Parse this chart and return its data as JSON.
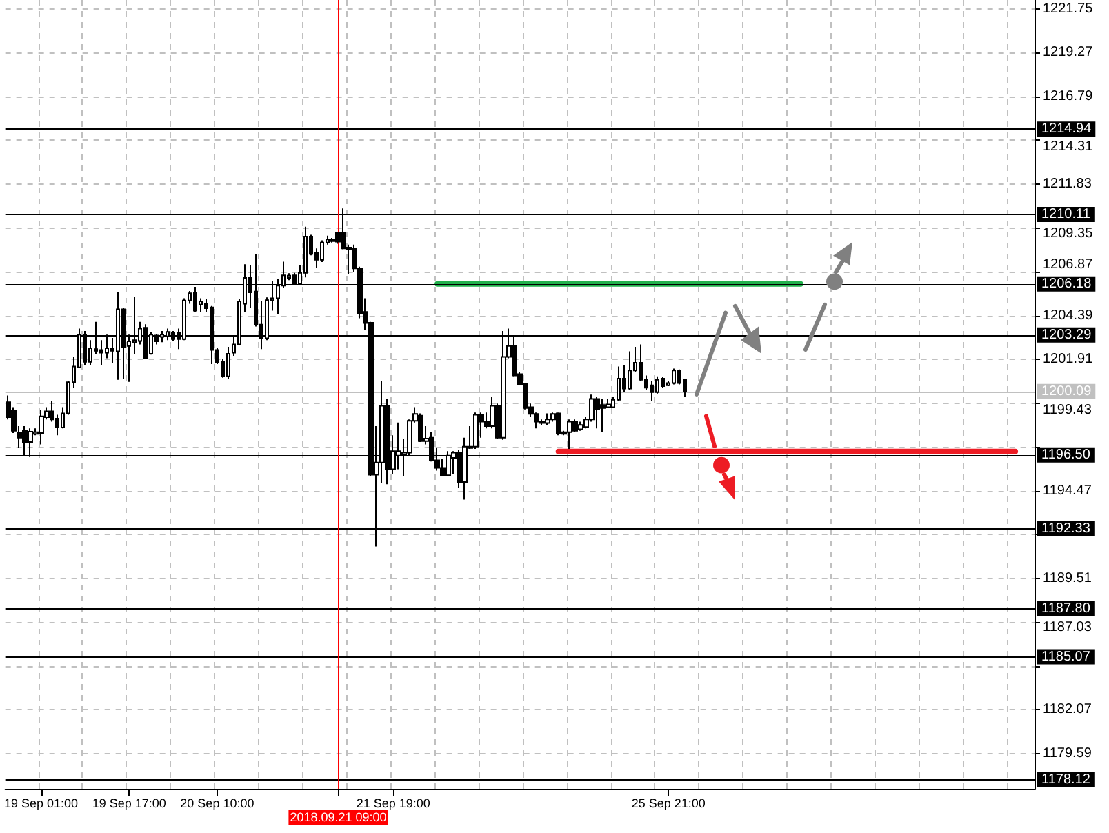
{
  "chart_data": {
    "type": "candlestick",
    "color": "#000000",
    "categories": [
      null,
      null,
      null,
      null,
      null,
      null,
      "19 Sep 01:00",
      null,
      null,
      null,
      null,
      null,
      null,
      null,
      null,
      null,
      null,
      null,
      null,
      null,
      null,
      null,
      "19 Sep 17:00",
      null,
      null,
      null,
      null,
      null,
      null,
      null,
      null,
      null,
      null,
      null,
      null,
      null,
      null,
      null,
      "20 Sep 10:00",
      null,
      null,
      null,
      null,
      null,
      null,
      null,
      null,
      null,
      null,
      null,
      null,
      null,
      null,
      null,
      null,
      null,
      null,
      null,
      null,
      null,
      "2018.09.21 09:00",
      null,
      null,
      null,
      null,
      null,
      null,
      null,
      null,
      null,
      "21 Sep 19:00",
      null,
      null,
      null,
      null,
      null,
      null,
      null,
      null,
      null,
      null,
      null,
      null,
      null,
      null,
      null,
      null,
      null,
      null,
      null,
      null,
      null,
      null,
      null,
      null,
      null,
      null,
      null,
      null,
      null,
      null,
      null,
      null,
      null,
      null,
      null,
      null,
      null,
      null,
      null,
      null,
      null,
      null,
      null,
      null,
      null,
      null,
      null,
      null,
      null,
      "25 Sep 21:00",
      null,
      null,
      null,
      null,
      null,
      null,
      null,
      null,
      null,
      null,
      null,
      null,
      null,
      null,
      null,
      null,
      null,
      null,
      null,
      null,
      null,
      null,
      null,
      null,
      null,
      null,
      null,
      null,
      null,
      null,
      null,
      null,
      null,
      null,
      null,
      null,
      null,
      null,
      null,
      null,
      null,
      null,
      null,
      null,
      null,
      null,
      null,
      null,
      null,
      null,
      null,
      null,
      null,
      null,
      null,
      null,
      null,
      null,
      null,
      null,
      null,
      null,
      null,
      null,
      null,
      null
    ],
    "ohlc": [
      [
        1199.49,
        1199.87,
        1198.51,
        1198.64
      ],
      [
        1199.03,
        1199.2,
        1197.74,
        1197.87
      ],
      [
        1197.74,
        1198.13,
        1196.89,
        1197.48
      ],
      [
        1197.87,
        1198.13,
        1196.46,
        1197.23
      ],
      [
        1197.23,
        1198.0,
        1196.38,
        1197.82
      ],
      [
        1197.69,
        1198.0,
        1197.61,
        1197.79
      ],
      [
        1197.74,
        1199.03,
        1197.1,
        1198.69
      ],
      [
        1198.64,
        1199.2,
        1198.51,
        1198.97
      ],
      [
        1198.97,
        1199.54,
        1198.38,
        1198.51
      ],
      [
        1198.56,
        1198.77,
        1197.61,
        1198.05
      ],
      [
        1198.05,
        1199.2,
        1198.0,
        1198.85
      ],
      [
        1198.85,
        1200.69,
        1198.77,
        1200.62
      ],
      [
        1200.62,
        1202.03,
        1200.31,
        1201.51
      ],
      [
        1201.46,
        1203.65,
        1201.41,
        1203.31
      ],
      [
        1203.31,
        1203.52,
        1201.59,
        1201.77
      ],
      [
        1201.77,
        1203.0,
        1201.59,
        1202.54
      ],
      [
        1202.39,
        1204.03,
        1202.23,
        1202.49
      ],
      [
        1202.44,
        1203.0,
        1201.59,
        1202.29
      ],
      [
        1202.29,
        1203.31,
        1201.97,
        1202.54
      ],
      [
        1202.54,
        1203.13,
        1201.72,
        1202.39
      ],
      [
        1202.36,
        1205.7,
        1200.75,
        1204.75
      ],
      [
        1204.75,
        1204.8,
        1200.82,
        1202.62
      ],
      [
        1202.67,
        1203.31,
        1200.64,
        1202.93
      ],
      [
        1202.88,
        1205.44,
        1202.23,
        1203.0
      ],
      [
        1202.95,
        1204.03,
        1202.75,
        1203.65
      ],
      [
        1203.7,
        1203.9,
        1201.93,
        1201.97
      ],
      [
        1202.23,
        1203.47,
        1202.18,
        1203.31
      ],
      [
        1203.26,
        1203.34,
        1202.75,
        1202.93
      ],
      [
        1203.18,
        1203.52,
        1202.88,
        1203.31
      ],
      [
        1203.21,
        1203.65,
        1203.0,
        1203.47
      ],
      [
        1203.44,
        1203.52,
        1202.95,
        1203.06
      ],
      [
        1203.44,
        1203.65,
        1202.49,
        1203.06
      ],
      [
        1203.06,
        1205.37,
        1203.0,
        1205.24
      ],
      [
        1205.24,
        1205.78,
        1205.06,
        1205.65
      ],
      [
        1205.7,
        1206.01,
        1204.6,
        1204.67
      ],
      [
        1205.01,
        1205.37,
        1204.6,
        1205.19
      ],
      [
        1205.06,
        1205.31,
        1204.6,
        1204.8
      ],
      [
        1204.85,
        1204.93,
        1201.64,
        1202.44
      ],
      [
        1202.44,
        1202.54,
        1201.64,
        1201.72
      ],
      [
        1201.77,
        1201.93,
        1200.87,
        1200.95
      ],
      [
        1200.95,
        1202.62,
        1200.82,
        1202.23
      ],
      [
        1202.29,
        1203.21,
        1202.11,
        1202.75
      ],
      [
        1202.75,
        1205.31,
        1202.7,
        1205.19
      ],
      [
        1205.06,
        1207.29,
        1204.6,
        1206.52
      ],
      [
        1206.52,
        1207.24,
        1204.8,
        1205.7
      ],
      [
        1205.75,
        1207.88,
        1203.77,
        1203.88
      ],
      [
        1203.88,
        1205.19,
        1202.49,
        1203.11
      ],
      [
        1203.11,
        1205.42,
        1203.0,
        1205.26
      ],
      [
        1205.26,
        1206.34,
        1204.67,
        1205.37
      ],
      [
        1205.37,
        1206.47,
        1204.49,
        1206.08
      ],
      [
        1206.08,
        1207.44,
        1205.96,
        1206.67
      ],
      [
        1206.52,
        1206.78,
        1206.39,
        1206.65
      ],
      [
        1206.67,
        1206.8,
        1206.14,
        1206.21
      ],
      [
        1206.21,
        1207.24,
        1206.16,
        1206.8
      ],
      [
        1206.8,
        1209.42,
        1206.55,
        1208.86
      ],
      [
        1208.86,
        1208.96,
        1207.8,
        1207.88
      ],
      [
        1207.93,
        1208.19,
        1207.11,
        1207.55
      ],
      [
        1207.55,
        1208.65,
        1207.42,
        1208.52
      ],
      [
        1208.52,
        1208.91,
        1208.4,
        1208.7
      ],
      [
        1208.7,
        1208.78,
        1208.52,
        1208.6
      ],
      [
        1209.09,
        1209.09,
        1208.45,
        1208.57
      ],
      [
        1209.09,
        1210.45,
        1208.14,
        1208.19
      ],
      [
        1208.24,
        1208.4,
        1206.73,
        1208.14
      ],
      [
        1208.19,
        1208.4,
        1206.85,
        1207.06
      ],
      [
        1207.06,
        1207.16,
        1204.24,
        1204.49
      ],
      [
        1204.6,
        1205.37,
        1203.57,
        1203.96
      ],
      [
        1203.98,
        1204.03,
        1195.3,
        1195.38
      ],
      [
        1195.38,
        1198.13,
        1191.32,
        1196.07
      ],
      [
        1196.07,
        1200.69,
        1194.92,
        1199.28
      ],
      [
        1199.28,
        1199.67,
        1194.84,
        1195.69
      ],
      [
        1195.69,
        1197.61,
        1195.43,
        1196.71
      ],
      [
        1196.46,
        1198.33,
        1195.69,
        1196.71
      ],
      [
        1196.53,
        1197.41,
        1195.3,
        1196.63
      ],
      [
        1196.63,
        1198.51,
        1196.46,
        1198.43
      ],
      [
        1198.43,
        1199.2,
        1198.33,
        1198.82
      ],
      [
        1198.72,
        1198.85,
        1197.23,
        1197.28
      ],
      [
        1197.28,
        1198.13,
        1197.1,
        1197.43
      ],
      [
        1197.48,
        1197.82,
        1196.13,
        1196.2
      ],
      [
        1196.2,
        1196.89,
        1195.61,
        1195.77
      ],
      [
        1195.77,
        1196.28,
        1195.3,
        1195.35
      ],
      [
        1195.35,
        1196.71,
        1195.3,
        1196.46
      ],
      [
        1196.33,
        1196.71,
        1195.43,
        1196.63
      ],
      [
        1196.63,
        1196.79,
        1194.66,
        1194.97
      ],
      [
        1194.97,
        1197.48,
        1193.97,
        1196.97
      ],
      [
        1196.89,
        1198.13,
        1196.84,
        1196.97
      ],
      [
        1196.97,
        1198.9,
        1196.84,
        1198.77
      ],
      [
        1198.77,
        1198.9,
        1197.48,
        1198.38
      ],
      [
        1198.38,
        1198.9,
        1198.0,
        1198.13
      ],
      [
        1198.13,
        1199.8,
        1198.0,
        1199.28
      ],
      [
        1199.28,
        1199.41,
        1197.43,
        1197.48
      ],
      [
        1197.48,
        1203.52,
        1197.36,
        1202.05
      ],
      [
        1202.05,
        1203.65,
        1201.97,
        1202.67
      ],
      [
        1202.67,
        1203.26,
        1200.95,
        1201.0
      ],
      [
        1201.08,
        1201.21,
        1200.44,
        1200.51
      ],
      [
        1200.51,
        1200.57,
        1199.08,
        1199.15
      ],
      [
        1199.2,
        1199.41,
        1198.64,
        1198.82
      ],
      [
        1198.82,
        1198.9,
        1198.0,
        1198.38
      ],
      [
        1198.38,
        1198.51,
        1198.2,
        1198.31
      ],
      [
        1198.31,
        1198.85,
        1198.18,
        1198.51
      ],
      [
        1198.51,
        1198.9,
        1198.38,
        1198.82
      ],
      [
        1198.85,
        1198.9,
        1197.61,
        1197.74
      ],
      [
        1197.79,
        1197.87,
        1197.61,
        1197.69
      ],
      [
        1197.79,
        1198.51,
        1196.84,
        1198.38
      ],
      [
        1198.38,
        1198.51,
        1197.79,
        1197.87
      ],
      [
        1197.95,
        1198.38,
        1197.87,
        1198.2
      ],
      [
        1198.08,
        1198.64,
        1198.0,
        1198.51
      ],
      [
        1198.51,
        1199.92,
        1198.38,
        1199.67
      ],
      [
        1199.67,
        1199.8,
        1198.0,
        1199.1
      ],
      [
        1199.33,
        1199.67,
        1197.82,
        1199.15
      ],
      [
        1199.2,
        1199.67,
        1199.15,
        1199.36
      ],
      [
        1199.2,
        1199.8,
        1199.15,
        1199.62
      ],
      [
        1199.62,
        1201.51,
        1199.54,
        1200.82
      ],
      [
        1200.82,
        1201.59,
        1200.05,
        1200.26
      ],
      [
        1200.26,
        1202.36,
        1200.18,
        1201.28
      ],
      [
        1201.28,
        1202.62,
        1201.21,
        1201.72
      ],
      [
        1201.72,
        1202.75,
        1200.69,
        1200.75
      ],
      [
        1200.75,
        1201.0,
        1200.18,
        1200.31
      ],
      [
        1200.44,
        1200.69,
        1199.54,
        1200.05
      ],
      [
        1200.05,
        1200.95,
        1199.97,
        1200.75
      ],
      [
        1200.82,
        1200.9,
        1200.31,
        1200.39
      ],
      [
        1200.44,
        1200.69,
        1200.39,
        1200.57
      ],
      [
        1200.57,
        1201.39,
        1200.49,
        1201.28
      ],
      [
        1201.28,
        1201.34,
        1200.49,
        1200.57
      ],
      [
        1200.75,
        1200.82,
        1199.8,
        1200.09
      ],
      null,
      null,
      null,
      null,
      null,
      null,
      null,
      null,
      null,
      null,
      null,
      null,
      null,
      null,
      null,
      null,
      null,
      null,
      null,
      null,
      null,
      null,
      null,
      null,
      null,
      null,
      null,
      null,
      null,
      null,
      null,
      null,
      null,
      null,
      null,
      null,
      null,
      null,
      null,
      null,
      null,
      null,
      null,
      null,
      null,
      null,
      null,
      null,
      null,
      null,
      null,
      null,
      null,
      null,
      null,
      null,
      null,
      null,
      null,
      null,
      null,
      null,
      null
    ],
    "series": [
      {
        "type": "line",
        "color": "#22b14c",
        "values": [
          null,
          null,
          null,
          null,
          null,
          null,
          null,
          null,
          null,
          null,
          null,
          null,
          null,
          null,
          null,
          null,
          null,
          null,
          null,
          null,
          null,
          null,
          null,
          null,
          null,
          null,
          null,
          null,
          null,
          null,
          null,
          null,
          null,
          null,
          null,
          null,
          null,
          null,
          null,
          null,
          null,
          null,
          null,
          null,
          null,
          null,
          null,
          null,
          null,
          null,
          null,
          null,
          null,
          null,
          null,
          null,
          null,
          null,
          null,
          null,
          null,
          null,
          null,
          null,
          null,
          null,
          null,
          null,
          null,
          null,
          null,
          null,
          null,
          null,
          null,
          null,
          null,
          null,
          1206.18,
          1206.18,
          1206.18,
          1206.18,
          1206.18,
          1206.18,
          1206.18,
          1206.18,
          1206.18,
          1206.18,
          1206.18,
          1206.18,
          1206.18,
          1206.18,
          1206.18,
          1206.18,
          1206.18,
          1206.18,
          1206.18,
          1206.18,
          1206.18,
          1206.18,
          1206.18,
          1206.18,
          1206.18,
          1206.18,
          1206.18,
          1206.18,
          1206.18,
          1206.18,
          1206.18,
          1206.18,
          1206.18,
          1206.18,
          1206.18,
          1206.18,
          1206.18,
          1206.18,
          1206.18,
          1206.18,
          1206.18,
          1206.18,
          1206.18,
          1206.18,
          1206.18,
          1206.18,
          1206.18,
          1206.18,
          1206.18,
          1206.18,
          1206.18,
          1206.18,
          1206.18,
          1206.18,
          1206.18,
          1206.18,
          1206.18,
          1206.18,
          1206.18,
          1206.18,
          1206.18,
          1206.18,
          1206.18,
          1206.18,
          1206.18,
          1206.18,
          1206.18,
          null,
          null,
          null,
          null,
          null,
          null,
          null,
          null,
          null,
          null,
          null,
          null,
          null,
          null,
          null,
          null,
          null,
          null,
          null,
          null,
          null,
          null,
          null,
          null,
          null,
          null,
          null,
          null,
          null,
          null,
          null,
          null,
          null,
          null,
          null,
          null,
          null,
          null,
          null,
          null,
          null,
          null
        ]
      },
      {
        "type": "line",
        "color": "#ed1c24",
        "values": [
          null,
          null,
          null,
          null,
          null,
          null,
          null,
          null,
          null,
          null,
          null,
          null,
          null,
          null,
          null,
          null,
          null,
          null,
          null,
          null,
          null,
          null,
          null,
          null,
          null,
          null,
          null,
          null,
          null,
          null,
          null,
          null,
          null,
          null,
          null,
          null,
          null,
          null,
          null,
          null,
          null,
          null,
          null,
          null,
          null,
          null,
          null,
          null,
          null,
          null,
          null,
          null,
          null,
          null,
          null,
          null,
          null,
          null,
          null,
          null,
          null,
          null,
          null,
          null,
          null,
          null,
          null,
          null,
          null,
          null,
          null,
          null,
          null,
          null,
          null,
          null,
          null,
          null,
          null,
          null,
          null,
          null,
          null,
          null,
          null,
          null,
          null,
          null,
          null,
          null,
          null,
          null,
          null,
          null,
          null,
          null,
          null,
          null,
          null,
          null,
          1196.7,
          1196.7,
          1196.7,
          1196.7,
          1196.7,
          1196.7,
          1196.7,
          1196.7,
          1196.7,
          1196.7,
          1196.7,
          1196.7,
          1196.7,
          1196.7,
          1196.7,
          1196.7,
          1196.7,
          1196.7,
          1196.7,
          1196.7,
          1196.7,
          1196.7,
          1196.7,
          1196.7,
          1196.7,
          1196.7,
          1196.7,
          1196.7,
          1196.7,
          1196.7,
          1196.7,
          1196.7,
          1196.7,
          1196.7,
          1196.7,
          1196.7,
          1196.7,
          1196.7,
          1196.7,
          1196.7,
          1196.7,
          1196.7,
          1196.7,
          1196.7,
          1196.7,
          1196.7,
          1196.7,
          1196.7,
          1196.7,
          1196.7,
          1196.7,
          1196.7,
          1196.7,
          1196.7,
          1196.7,
          1196.7,
          1196.7,
          1196.7,
          1196.7,
          1196.7,
          1196.7,
          1196.7,
          1196.7,
          1196.7,
          1196.7,
          1196.7,
          1196.7,
          1196.7,
          1196.7,
          1196.7,
          1196.7,
          1196.7,
          1196.7,
          1196.7,
          1196.7,
          1196.7,
          1196.7,
          1196.7,
          1196.7,
          1196.7,
          1196.7,
          1196.7,
          1196.7,
          1196.7,
          null,
          null,
          null
        ]
      }
    ],
    "ylim": [
      1177.6,
      1222.25
    ],
    "yticks": [
      1179.59,
      1182.07,
      {
        "value": 1184.55,
        "label": null
      },
      1187.03,
      1189.51,
      {
        "value": 1191.99,
        "label": null
      },
      1194.47,
      {
        "value": 1196.95,
        "label": null
      },
      1199.43,
      1201.91,
      1204.39,
      1206.87,
      1209.35,
      1211.83,
      1214.31,
      1216.79,
      1219.27,
      1221.75
    ],
    "ref_lines": [
      {
        "axis": "y",
        "value": 1214.94,
        "label": "1214.94",
        "color": "#000000"
      },
      {
        "axis": "y",
        "value": 1210.11,
        "label": "1210.11",
        "color": "#000000"
      },
      {
        "axis": "y",
        "value": 1206.18,
        "label": "1206.18",
        "color": "#000000"
      },
      {
        "axis": "y",
        "value": 1203.29,
        "label": "1203.29",
        "color": "#000000"
      },
      {
        "axis": "y",
        "value": 1200.09,
        "label": "1200.09",
        "color": "#c0c0c0"
      },
      {
        "axis": "y",
        "value": 1196.5,
        "label": "1196.50",
        "color": "#000000"
      },
      {
        "axis": "y",
        "value": 1192.33,
        "label": "1192.33",
        "color": "#000000"
      },
      {
        "axis": "y",
        "value": 1187.8,
        "label": "1187.80",
        "color": "#000000"
      },
      {
        "axis": "y",
        "value": 1185.07,
        "label": "1185.07",
        "color": "#000000"
      },
      {
        "axis": "y",
        "value": 1178.12,
        "label": "1178.12",
        "color": "#000000"
      },
      {
        "axis": "x",
        "value": "2018.09.21 09:00",
        "color": "#ff0000"
      }
    ],
    "grid": true
  }
}
